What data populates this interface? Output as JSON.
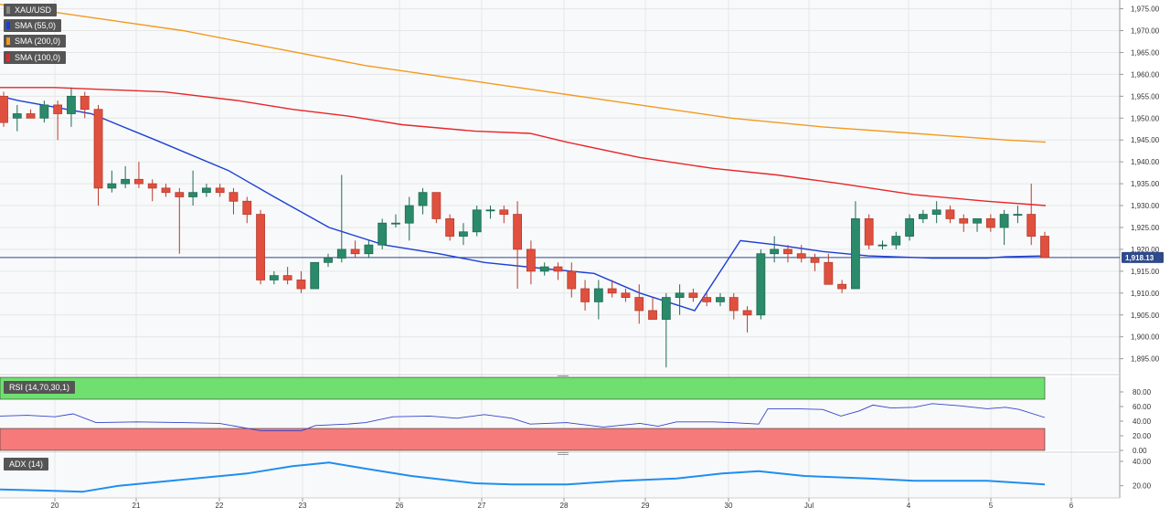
{
  "chart_data": {
    "type": "candlestick",
    "symbol": "XAU/USD",
    "x_labels": [
      "20",
      "21",
      "22",
      "23",
      "26",
      "27",
      "28",
      "29",
      "30",
      "Jul",
      "4",
      "5",
      "6"
    ],
    "price_axis": {
      "ylim": [
        1892,
        1977
      ],
      "ticks": [
        "1,975.00",
        "1,970.00",
        "1,965.00",
        "1,960.00",
        "1,955.00",
        "1,950.00",
        "1,945.00",
        "1,940.00",
        "1,935.00",
        "1,930.00",
        "1,925.00",
        "1,920.00",
        "1,915.00",
        "1,910.00",
        "1,905.00",
        "1,900.00",
        "1,895.00"
      ],
      "tick_values": [
        1975,
        1970,
        1965,
        1960,
        1955,
        1950,
        1945,
        1940,
        1935,
        1930,
        1925,
        1920,
        1915,
        1910,
        1905,
        1900,
        1895
      ]
    },
    "current_price": {
      "value": 1918.13,
      "label": "1,918.13",
      "color": "#2f4a8a"
    },
    "candles": [
      [
        1955,
        1956,
        1948,
        1949
      ],
      [
        1950,
        1953,
        1947,
        1951
      ],
      [
        1951,
        1952,
        1950,
        1950
      ],
      [
        1950,
        1954,
        1949,
        1953
      ],
      [
        1953,
        1954,
        1945,
        1951
      ],
      [
        1951,
        1957,
        1948,
        1955
      ],
      [
        1955,
        1956,
        1950,
        1952
      ],
      [
        1952,
        1953,
        1930,
        1934
      ],
      [
        1934,
        1938,
        1933,
        1935
      ],
      [
        1935,
        1939,
        1934,
        1936
      ],
      [
        1936,
        1940,
        1934,
        1935
      ],
      [
        1935,
        1936,
        1931,
        1934
      ],
      [
        1934,
        1935,
        1932,
        1933
      ],
      [
        1933,
        1934,
        1919,
        1932
      ],
      [
        1932,
        1938,
        1930,
        1933
      ],
      [
        1933,
        1935,
        1932,
        1934
      ],
      [
        1934,
        1935,
        1932,
        1933
      ],
      [
        1933,
        1934,
        1928,
        1931
      ],
      [
        1931,
        1932,
        1926,
        1928
      ],
      [
        1928,
        1929,
        1912,
        1913
      ],
      [
        1913,
        1915,
        1912,
        1914
      ],
      [
        1914,
        1916,
        1912,
        1913
      ],
      [
        1913,
        1915,
        1910,
        1911
      ],
      [
        1911,
        1917,
        1911,
        1917
      ],
      [
        1917,
        1919,
        1916,
        1918
      ],
      [
        1918,
        1937,
        1917,
        1920
      ],
      [
        1920,
        1922,
        1918,
        1919
      ],
      [
        1919,
        1922,
        1918,
        1921
      ],
      [
        1921,
        1927,
        1920,
        1926
      ],
      [
        1926,
        1928,
        1925,
        1926
      ],
      [
        1926,
        1932,
        1922,
        1930
      ],
      [
        1930,
        1934,
        1928,
        1933
      ],
      [
        1933,
        1933,
        1926,
        1927
      ],
      [
        1927,
        1928,
        1922,
        1923
      ],
      [
        1923,
        1926,
        1921,
        1924
      ],
      [
        1924,
        1930,
        1923,
        1929
      ],
      [
        1929,
        1930,
        1927,
        1929
      ],
      [
        1929,
        1930,
        1926,
        1928
      ],
      [
        1928,
        1931,
        1911,
        1920
      ],
      [
        1920,
        1922,
        1912,
        1915
      ],
      [
        1915,
        1917,
        1914,
        1916
      ],
      [
        1916,
        1917,
        1913,
        1915
      ],
      [
        1915,
        1917,
        1909,
        1911
      ],
      [
        1911,
        1913,
        1906,
        1908
      ],
      [
        1908,
        1913,
        1904,
        1911
      ],
      [
        1911,
        1913,
        1909,
        1910
      ],
      [
        1910,
        1911,
        1908,
        1909
      ],
      [
        1909,
        1912,
        1903,
        1906
      ],
      [
        1906,
        1909,
        1904,
        1904
      ],
      [
        1904,
        1910,
        1893,
        1909
      ],
      [
        1909,
        1912,
        1905,
        1910
      ],
      [
        1910,
        1911,
        1908,
        1909
      ],
      [
        1909,
        1910,
        1907,
        1908
      ],
      [
        1908,
        1910,
        1907,
        1909
      ],
      [
        1909,
        1910,
        1904,
        1906
      ],
      [
        1906,
        1907,
        1901,
        1905
      ],
      [
        1905,
        1920,
        1904,
        1919
      ],
      [
        1919,
        1923,
        1917,
        1920
      ],
      [
        1920,
        1921,
        1917,
        1919
      ],
      [
        1919,
        1921,
        1917,
        1918
      ],
      [
        1918,
        1919,
        1915,
        1917
      ],
      [
        1917,
        1919,
        1912,
        1912
      ],
      [
        1912,
        1913,
        1910,
        1911
      ],
      [
        1911,
        1931,
        1911,
        1927
      ],
      [
        1927,
        1928,
        1920,
        1921
      ],
      [
        1921,
        1922,
        1920,
        1921
      ],
      [
        1921,
        1924,
        1920,
        1923
      ],
      [
        1923,
        1928,
        1922,
        1927
      ],
      [
        1927,
        1929,
        1926,
        1928
      ],
      [
        1928,
        1931,
        1926,
        1929
      ],
      [
        1929,
        1930,
        1926,
        1927
      ],
      [
        1927,
        1928,
        1924,
        1926
      ],
      [
        1926,
        1927,
        1924,
        1927
      ],
      [
        1927,
        1928,
        1924,
        1925
      ],
      [
        1925,
        1929,
        1921,
        1928
      ],
      [
        1928,
        1930,
        1926,
        1928
      ],
      [
        1928,
        1935,
        1921,
        1923
      ],
      [
        1923,
        1924,
        1918,
        1918.13
      ]
    ],
    "series": [
      {
        "name": "SMA (55,0)",
        "color": "#1a3fd6",
        "values": [
          [
            0,
            1955
          ],
          [
            20,
            1954
          ],
          [
            100,
            1951
          ],
          [
            170,
            1945
          ],
          [
            250,
            1938
          ],
          [
            300,
            1932
          ],
          [
            360,
            1925
          ],
          [
            420,
            1921
          ],
          [
            480,
            1919
          ],
          [
            530,
            1917
          ],
          [
            600,
            1915.5
          ],
          [
            650,
            1914.5
          ],
          [
            700,
            1910
          ],
          [
            760,
            1906
          ],
          [
            810,
            1922
          ],
          [
            850,
            1921
          ],
          [
            900,
            1919.5
          ],
          [
            950,
            1918.5
          ],
          [
            1020,
            1918
          ],
          [
            1080,
            1918
          ],
          [
            1100,
            1918.3
          ],
          [
            1144,
            1918.5
          ]
        ]
      },
      {
        "name": "SMA (200,0)",
        "color": "#f39a1e",
        "values": [
          [
            0,
            1976
          ],
          [
            100,
            1973
          ],
          [
            200,
            1970
          ],
          [
            300,
            1966
          ],
          [
            400,
            1962
          ],
          [
            500,
            1959
          ],
          [
            600,
            1956
          ],
          [
            700,
            1953
          ],
          [
            800,
            1950
          ],
          [
            900,
            1948
          ],
          [
            1000,
            1946.5
          ],
          [
            1100,
            1945
          ],
          [
            1144,
            1944.5
          ]
        ]
      },
      {
        "name": "SMA (100,0)",
        "color": "#e8262a",
        "values": [
          [
            0,
            1957
          ],
          [
            60,
            1957
          ],
          [
            180,
            1956
          ],
          [
            260,
            1954
          ],
          [
            320,
            1952
          ],
          [
            380,
            1950.5
          ],
          [
            440,
            1948.5
          ],
          [
            520,
            1947
          ],
          [
            580,
            1946.5
          ],
          [
            620,
            1944.5
          ],
          [
            700,
            1941
          ],
          [
            780,
            1938.5
          ],
          [
            850,
            1937
          ],
          [
            920,
            1935
          ],
          [
            1000,
            1932.5
          ],
          [
            1080,
            1931
          ],
          [
            1144,
            1930
          ]
        ]
      }
    ],
    "rsi": {
      "label": "RSI (14,70,30,1)",
      "levels": [
        70,
        30
      ],
      "ticks": [
        "80.00",
        "60.00",
        "40.00",
        "20.00",
        "0.00"
      ],
      "tick_values": [
        80,
        60,
        40,
        20,
        0
      ],
      "ylim": [
        0,
        100
      ],
      "values": [
        [
          0,
          47
        ],
        [
          30,
          48
        ],
        [
          60,
          46
        ],
        [
          80,
          50
        ],
        [
          105,
          38
        ],
        [
          150,
          39
        ],
        [
          200,
          38
        ],
        [
          240,
          37
        ],
        [
          285,
          27
        ],
        [
          330,
          27
        ],
        [
          345,
          34
        ],
        [
          380,
          36
        ],
        [
          400,
          38
        ],
        [
          430,
          46
        ],
        [
          470,
          47
        ],
        [
          500,
          44
        ],
        [
          530,
          49
        ],
        [
          560,
          44
        ],
        [
          580,
          36
        ],
        [
          620,
          38
        ],
        [
          660,
          32
        ],
        [
          700,
          37
        ],
        [
          720,
          33
        ],
        [
          740,
          39
        ],
        [
          780,
          39
        ],
        [
          800,
          38
        ],
        [
          830,
          36
        ],
        [
          840,
          57
        ],
        [
          870,
          57
        ],
        [
          900,
          56
        ],
        [
          920,
          47
        ],
        [
          940,
          54
        ],
        [
          955,
          62
        ],
        [
          975,
          58
        ],
        [
          1000,
          59
        ],
        [
          1020,
          64
        ],
        [
          1050,
          61
        ],
        [
          1080,
          57
        ],
        [
          1100,
          59
        ],
        [
          1115,
          56
        ],
        [
          1143,
          45
        ]
      ],
      "line_color": "#3344cc"
    },
    "adx": {
      "label": "ADX (14)",
      "ticks": [
        "40.00",
        "20.00"
      ],
      "tick_values": [
        40,
        20
      ],
      "ylim": [
        10,
        46
      ],
      "values": [
        [
          0,
          17
        ],
        [
          50,
          16
        ],
        [
          90,
          15
        ],
        [
          130,
          20
        ],
        [
          200,
          25
        ],
        [
          270,
          30
        ],
        [
          320,
          36
        ],
        [
          360,
          39
        ],
        [
          400,
          34
        ],
        [
          450,
          28
        ],
        [
          520,
          22
        ],
        [
          560,
          21
        ],
        [
          620,
          21
        ],
        [
          680,
          24
        ],
        [
          740,
          26
        ],
        [
          790,
          30
        ],
        [
          830,
          32
        ],
        [
          880,
          28
        ],
        [
          950,
          26
        ],
        [
          1000,
          24
        ],
        [
          1040,
          24
        ],
        [
          1080,
          24
        ],
        [
          1143,
          21
        ]
      ],
      "line_color": "#1f8ef0"
    }
  }
}
